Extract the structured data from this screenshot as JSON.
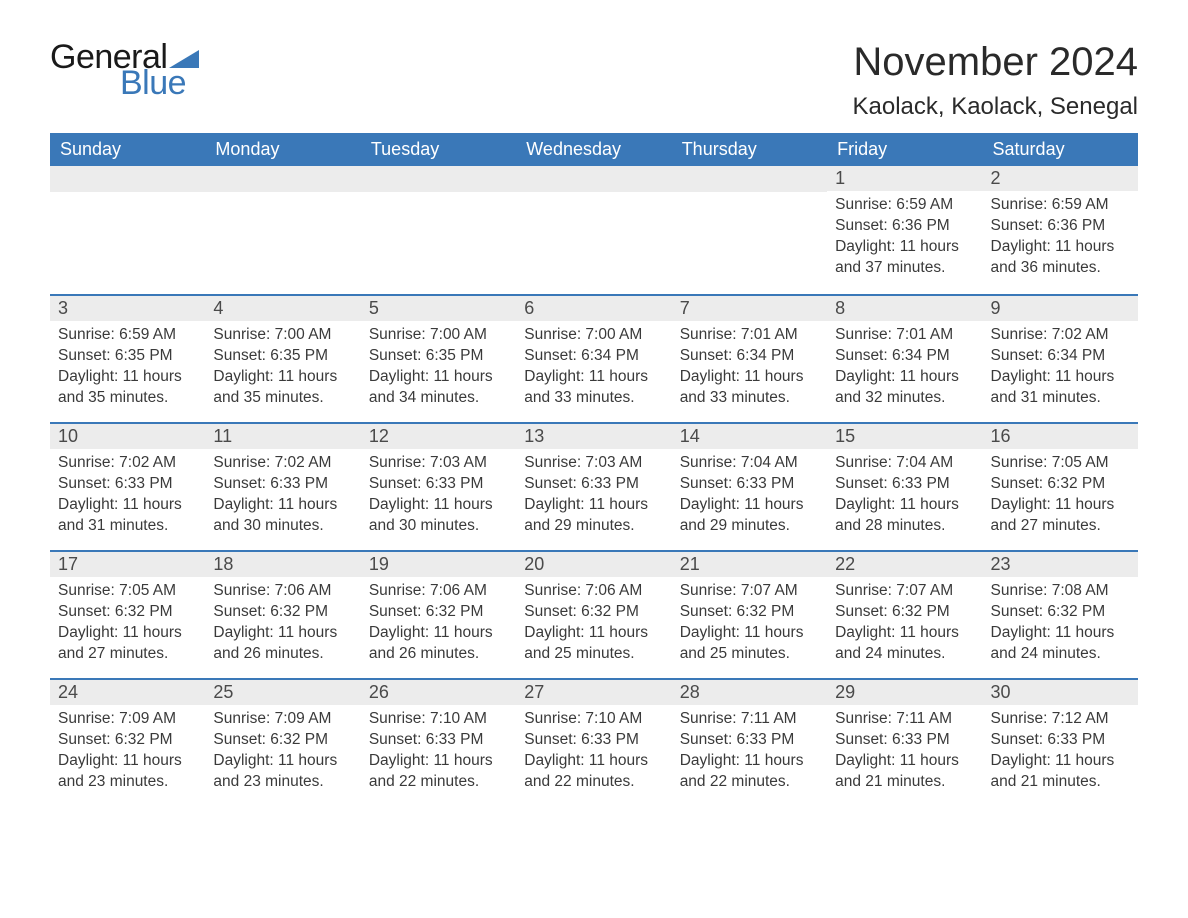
{
  "logo": {
    "text_general": "General",
    "text_blue": "Blue",
    "triangle_color": "#3a78b8"
  },
  "title": "November 2024",
  "location": "Kaolack, Kaolack, Senegal",
  "colors": {
    "header_bg": "#3a78b8",
    "header_text": "#ffffff",
    "daynum_bg": "#ececec",
    "daynum_text": "#4a4a4a",
    "body_text": "#3a3a3a",
    "week_border": "#3a78b8",
    "page_bg": "#ffffff"
  },
  "fonts": {
    "family": "Arial",
    "title_size_pt": 30,
    "location_size_pt": 18,
    "weekday_size_pt": 14,
    "daynum_size_pt": 14,
    "body_size_pt": 12
  },
  "weekdays": [
    "Sunday",
    "Monday",
    "Tuesday",
    "Wednesday",
    "Thursday",
    "Friday",
    "Saturday"
  ],
  "weeks": [
    [
      {
        "day": "",
        "sunrise": "",
        "sunset": "",
        "daylight": ""
      },
      {
        "day": "",
        "sunrise": "",
        "sunset": "",
        "daylight": ""
      },
      {
        "day": "",
        "sunrise": "",
        "sunset": "",
        "daylight": ""
      },
      {
        "day": "",
        "sunrise": "",
        "sunset": "",
        "daylight": ""
      },
      {
        "day": "",
        "sunrise": "",
        "sunset": "",
        "daylight": ""
      },
      {
        "day": "1",
        "sunrise": "Sunrise: 6:59 AM",
        "sunset": "Sunset: 6:36 PM",
        "daylight": "Daylight: 11 hours and 37 minutes."
      },
      {
        "day": "2",
        "sunrise": "Sunrise: 6:59 AM",
        "sunset": "Sunset: 6:36 PM",
        "daylight": "Daylight: 11 hours and 36 minutes."
      }
    ],
    [
      {
        "day": "3",
        "sunrise": "Sunrise: 6:59 AM",
        "sunset": "Sunset: 6:35 PM",
        "daylight": "Daylight: 11 hours and 35 minutes."
      },
      {
        "day": "4",
        "sunrise": "Sunrise: 7:00 AM",
        "sunset": "Sunset: 6:35 PM",
        "daylight": "Daylight: 11 hours and 35 minutes."
      },
      {
        "day": "5",
        "sunrise": "Sunrise: 7:00 AM",
        "sunset": "Sunset: 6:35 PM",
        "daylight": "Daylight: 11 hours and 34 minutes."
      },
      {
        "day": "6",
        "sunrise": "Sunrise: 7:00 AM",
        "sunset": "Sunset: 6:34 PM",
        "daylight": "Daylight: 11 hours and 33 minutes."
      },
      {
        "day": "7",
        "sunrise": "Sunrise: 7:01 AM",
        "sunset": "Sunset: 6:34 PM",
        "daylight": "Daylight: 11 hours and 33 minutes."
      },
      {
        "day": "8",
        "sunrise": "Sunrise: 7:01 AM",
        "sunset": "Sunset: 6:34 PM",
        "daylight": "Daylight: 11 hours and 32 minutes."
      },
      {
        "day": "9",
        "sunrise": "Sunrise: 7:02 AM",
        "sunset": "Sunset: 6:34 PM",
        "daylight": "Daylight: 11 hours and 31 minutes."
      }
    ],
    [
      {
        "day": "10",
        "sunrise": "Sunrise: 7:02 AM",
        "sunset": "Sunset: 6:33 PM",
        "daylight": "Daylight: 11 hours and 31 minutes."
      },
      {
        "day": "11",
        "sunrise": "Sunrise: 7:02 AM",
        "sunset": "Sunset: 6:33 PM",
        "daylight": "Daylight: 11 hours and 30 minutes."
      },
      {
        "day": "12",
        "sunrise": "Sunrise: 7:03 AM",
        "sunset": "Sunset: 6:33 PM",
        "daylight": "Daylight: 11 hours and 30 minutes."
      },
      {
        "day": "13",
        "sunrise": "Sunrise: 7:03 AM",
        "sunset": "Sunset: 6:33 PM",
        "daylight": "Daylight: 11 hours and 29 minutes."
      },
      {
        "day": "14",
        "sunrise": "Sunrise: 7:04 AM",
        "sunset": "Sunset: 6:33 PM",
        "daylight": "Daylight: 11 hours and 29 minutes."
      },
      {
        "day": "15",
        "sunrise": "Sunrise: 7:04 AM",
        "sunset": "Sunset: 6:33 PM",
        "daylight": "Daylight: 11 hours and 28 minutes."
      },
      {
        "day": "16",
        "sunrise": "Sunrise: 7:05 AM",
        "sunset": "Sunset: 6:32 PM",
        "daylight": "Daylight: 11 hours and 27 minutes."
      }
    ],
    [
      {
        "day": "17",
        "sunrise": "Sunrise: 7:05 AM",
        "sunset": "Sunset: 6:32 PM",
        "daylight": "Daylight: 11 hours and 27 minutes."
      },
      {
        "day": "18",
        "sunrise": "Sunrise: 7:06 AM",
        "sunset": "Sunset: 6:32 PM",
        "daylight": "Daylight: 11 hours and 26 minutes."
      },
      {
        "day": "19",
        "sunrise": "Sunrise: 7:06 AM",
        "sunset": "Sunset: 6:32 PM",
        "daylight": "Daylight: 11 hours and 26 minutes."
      },
      {
        "day": "20",
        "sunrise": "Sunrise: 7:06 AM",
        "sunset": "Sunset: 6:32 PM",
        "daylight": "Daylight: 11 hours and 25 minutes."
      },
      {
        "day": "21",
        "sunrise": "Sunrise: 7:07 AM",
        "sunset": "Sunset: 6:32 PM",
        "daylight": "Daylight: 11 hours and 25 minutes."
      },
      {
        "day": "22",
        "sunrise": "Sunrise: 7:07 AM",
        "sunset": "Sunset: 6:32 PM",
        "daylight": "Daylight: 11 hours and 24 minutes."
      },
      {
        "day": "23",
        "sunrise": "Sunrise: 7:08 AM",
        "sunset": "Sunset: 6:32 PM",
        "daylight": "Daylight: 11 hours and 24 minutes."
      }
    ],
    [
      {
        "day": "24",
        "sunrise": "Sunrise: 7:09 AM",
        "sunset": "Sunset: 6:32 PM",
        "daylight": "Daylight: 11 hours and 23 minutes."
      },
      {
        "day": "25",
        "sunrise": "Sunrise: 7:09 AM",
        "sunset": "Sunset: 6:32 PM",
        "daylight": "Daylight: 11 hours and 23 minutes."
      },
      {
        "day": "26",
        "sunrise": "Sunrise: 7:10 AM",
        "sunset": "Sunset: 6:33 PM",
        "daylight": "Daylight: 11 hours and 22 minutes."
      },
      {
        "day": "27",
        "sunrise": "Sunrise: 7:10 AM",
        "sunset": "Sunset: 6:33 PM",
        "daylight": "Daylight: 11 hours and 22 minutes."
      },
      {
        "day": "28",
        "sunrise": "Sunrise: 7:11 AM",
        "sunset": "Sunset: 6:33 PM",
        "daylight": "Daylight: 11 hours and 22 minutes."
      },
      {
        "day": "29",
        "sunrise": "Sunrise: 7:11 AM",
        "sunset": "Sunset: 6:33 PM",
        "daylight": "Daylight: 11 hours and 21 minutes."
      },
      {
        "day": "30",
        "sunrise": "Sunrise: 7:12 AM",
        "sunset": "Sunset: 6:33 PM",
        "daylight": "Daylight: 11 hours and 21 minutes."
      }
    ]
  ]
}
